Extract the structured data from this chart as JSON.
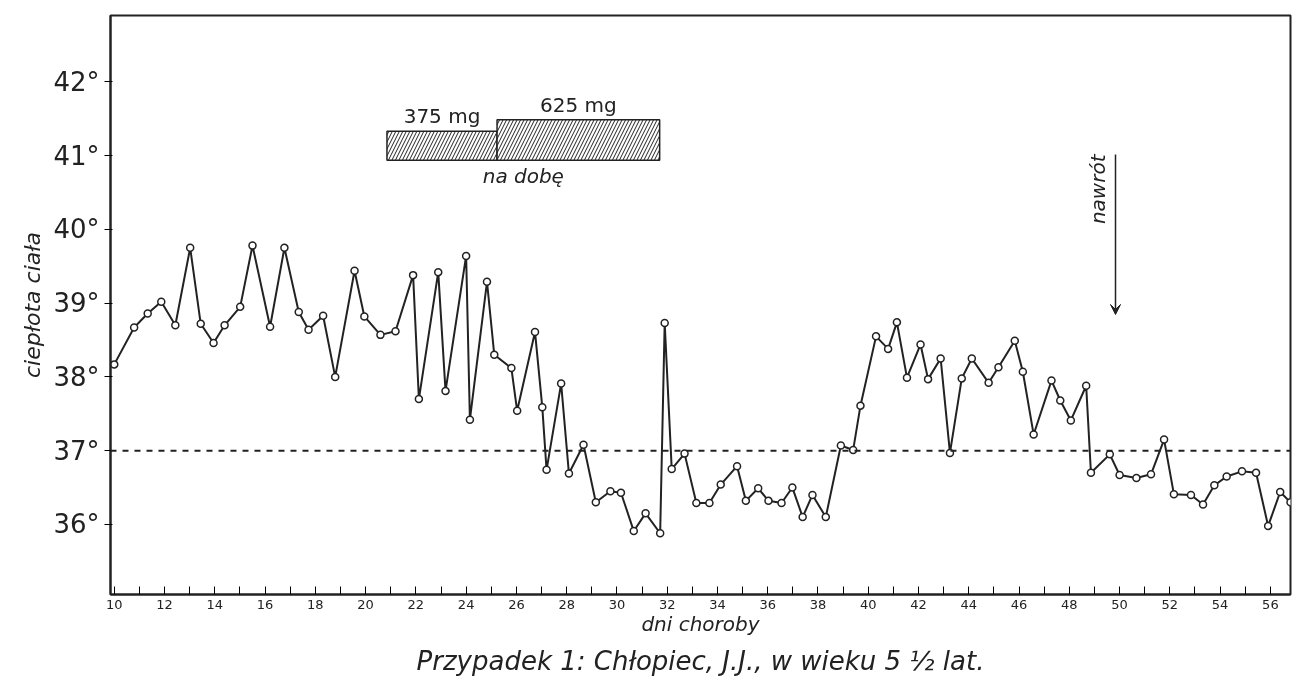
{
  "chart_data": {
    "type": "line",
    "title": "Przypadek 1: Chłopiec, J.J., w wieku 5 ½ lat.",
    "xlabel": "dni choroby",
    "ylabel": "ciepłota ciała",
    "x": [
      10.0,
      10.79,
      11.33,
      11.87,
      12.43,
      13.02,
      13.44,
      13.95,
      14.39,
      15.01,
      15.5,
      16.2,
      16.77,
      17.34,
      17.73,
      18.31,
      18.79,
      19.56,
      19.95,
      20.59,
      21.19,
      21.89,
      22.12,
      22.89,
      23.18,
      24.0,
      24.15,
      24.83,
      25.12,
      25.8,
      26.03,
      26.74,
      27.03,
      27.2,
      27.78,
      28.09,
      28.67,
      29.16,
      29.74,
      30.16,
      30.67,
      31.14,
      31.72,
      31.9,
      32.18,
      32.69,
      33.16,
      33.68,
      34.13,
      34.78,
      35.13,
      35.62,
      36.03,
      36.55,
      36.98,
      37.39,
      37.78,
      38.31,
      38.91,
      39.4,
      39.69,
      40.31,
      40.79,
      41.14,
      41.54,
      42.08,
      42.38,
      42.88,
      43.25,
      43.72,
      44.12,
      44.79,
      45.18,
      45.83,
      46.15,
      46.58,
      47.29,
      47.64,
      48.06,
      48.67,
      48.86,
      49.61,
      50.0,
      50.67,
      51.25,
      51.77,
      52.16,
      52.84,
      53.32,
      53.77,
      54.26,
      54.87,
      55.43,
      55.91,
      56.39,
      56.8
    ],
    "series": [
      {
        "color": "#222222",
        "values": [
          38.17,
          38.67,
          38.86,
          39.02,
          38.7,
          39.75,
          38.72,
          38.46,
          38.7,
          38.95,
          39.78,
          38.68,
          39.75,
          38.88,
          38.64,
          38.83,
          38.0,
          39.44,
          38.82,
          38.57,
          38.62,
          39.38,
          37.7,
          39.42,
          37.81,
          39.64,
          37.42,
          39.29,
          38.3,
          38.12,
          37.54,
          38.61,
          37.59,
          36.74,
          37.91,
          36.69,
          37.08,
          36.3,
          36.45,
          36.43,
          35.91,
          36.15,
          35.88,
          38.73,
          36.75,
          36.96,
          36.29,
          36.29,
          36.54,
          36.79,
          36.32,
          36.49,
          36.32,
          36.29,
          36.5,
          36.1,
          36.4,
          36.1,
          37.07,
          37.01,
          37.61,
          38.55,
          38.38,
          38.74,
          37.99,
          38.44,
          37.97,
          38.25,
          36.97,
          37.98,
          38.25,
          37.92,
          38.13,
          38.49,
          38.07,
          37.22,
          37.95,
          37.68,
          37.41,
          37.88,
          36.7,
          36.95,
          36.67,
          36.63,
          36.68,
          37.15,
          36.41,
          36.4,
          36.27,
          36.53,
          36.65,
          36.72,
          36.7,
          35.98,
          36.44,
          36.3
        ]
      }
    ],
    "marker": "circle",
    "line_style": "solid",
    "grid": false,
    "bands": [
      {
        "axis": "x",
        "from": 20.85,
        "to": 25.23,
        "label": "375 mg",
        "color": "#222222"
      },
      {
        "axis": "x",
        "from": 25.23,
        "to": 31.7,
        "label": "625 mg",
        "color": "#222222"
      }
    ],
    "xlim": [
      9.85,
      56.8
    ],
    "ylim": [
      35.05,
      42.9
    ],
    "xticks": [
      10,
      {
        "value": 11,
        "label": null
      },
      12,
      {
        "value": 13,
        "label": null
      },
      14,
      {
        "value": 15,
        "label": null
      },
      16,
      {
        "value": 17,
        "label": null
      },
      18,
      {
        "value": 19,
        "label": null
      },
      20,
      {
        "value": 21,
        "label": null
      },
      22,
      {
        "value": 23,
        "label": null
      },
      24,
      {
        "value": 25,
        "label": null
      },
      26,
      {
        "value": 27,
        "label": null
      },
      28,
      {
        "value": 29,
        "label": null
      },
      30,
      {
        "value": 31,
        "label": null
      },
      32,
      {
        "value": 33,
        "label": null
      },
      34,
      {
        "value": 35,
        "label": null
      },
      36,
      {
        "value": 37,
        "label": null
      },
      38,
      {
        "value": 39,
        "label": null
      },
      40,
      {
        "value": 41,
        "label": null
      },
      42,
      {
        "value": 43,
        "label": null
      },
      44,
      {
        "value": 45,
        "label": null
      },
      46,
      {
        "value": 47,
        "label": null
      },
      48,
      {
        "value": 49,
        "label": null
      },
      50,
      {
        "value": 51,
        "label": null
      },
      52,
      {
        "value": 53,
        "label": null
      },
      54,
      {
        "value": 55,
        "label": null
      },
      56
    ],
    "yticks": [
      {
        "value": 36,
        "label": "36°"
      },
      {
        "value": 37,
        "label": "37°"
      },
      {
        "value": 38,
        "label": "38°"
      },
      {
        "value": 39,
        "label": "39°"
      },
      {
        "value": 40,
        "label": "40°"
      },
      {
        "value": 41,
        "label": "41°"
      },
      {
        "value": 42,
        "label": "42°"
      }
    ],
    "ref_lines": [
      {
        "axis": "y",
        "value": 37,
        "label": null,
        "line_style": "dashed",
        "color": "#222222"
      }
    ],
    "annotations": [
      "na dobę",
      "nawrót"
    ]
  }
}
